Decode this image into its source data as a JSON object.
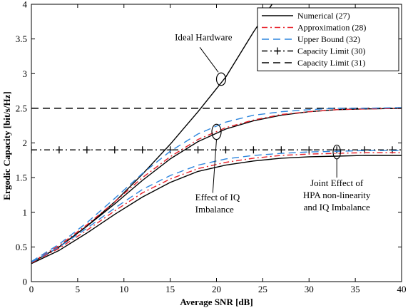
{
  "chart_data": {
    "type": "line",
    "xlabel": "Average SNR [dB]",
    "ylabel": "Ergodic Capacity [bit/s/Hz]",
    "xlim": [
      0,
      40
    ],
    "ylim": [
      0,
      4
    ],
    "xticks": [
      0,
      5,
      10,
      15,
      20,
      25,
      30,
      35,
      40
    ],
    "yticks": [
      0,
      0.5,
      1,
      1.5,
      2,
      2.5,
      3,
      3.5,
      4
    ],
    "xtick_labels": [
      "0",
      "5",
      "10",
      "15",
      "20",
      "25",
      "30",
      "35",
      "40"
    ],
    "ytick_labels": [
      "0",
      "0.5",
      "1",
      "1.5",
      "2",
      "2.5",
      "3",
      "3.5",
      "4"
    ],
    "grid": false,
    "legend_position": "top-right",
    "legend": [
      {
        "label": "Numerical (27)",
        "color": "#000000",
        "style": "solid",
        "marker": "none"
      },
      {
        "label": "Approximation (28)",
        "color": "#e8202a",
        "style": "dashdot",
        "marker": "none"
      },
      {
        "label": "Upper Bound (32)",
        "color": "#2e86de",
        "style": "dashed",
        "marker": "none"
      },
      {
        "label": "Capacity Limit (30)",
        "color": "#000000",
        "style": "dashdot",
        "marker": "plus"
      },
      {
        "label": "Capacity Limit (31)",
        "color": "#000000",
        "style": "dashed",
        "marker": "none"
      }
    ],
    "series": [
      {
        "group": "ideal",
        "color": "#000000",
        "style": "solid",
        "x": [
          0,
          3,
          6,
          9,
          12,
          15,
          18,
          21,
          24,
          26
        ],
        "y": [
          0.27,
          0.5,
          0.8,
          1.15,
          1.55,
          1.98,
          2.45,
          2.95,
          3.6,
          4.0
        ]
      },
      {
        "group": "iq",
        "color": "#000000",
        "style": "solid",
        "x": [
          0,
          3,
          6,
          9,
          12,
          15,
          18,
          21,
          24,
          27,
          30,
          33,
          36,
          40
        ],
        "y": [
          0.27,
          0.5,
          0.8,
          1.12,
          1.46,
          1.77,
          2.02,
          2.2,
          2.32,
          2.4,
          2.45,
          2.48,
          2.49,
          2.5
        ]
      },
      {
        "group": "iq",
        "color": "#e8202a",
        "style": "dashdot",
        "x": [
          0,
          3,
          6,
          9,
          12,
          15,
          18,
          21,
          24,
          27,
          30,
          33,
          36,
          40
        ],
        "y": [
          0.28,
          0.52,
          0.82,
          1.15,
          1.5,
          1.8,
          2.05,
          2.22,
          2.33,
          2.41,
          2.45,
          2.48,
          2.49,
          2.5
        ]
      },
      {
        "group": "iq",
        "color": "#2e86de",
        "style": "dashed",
        "x": [
          0,
          3,
          6,
          9,
          12,
          15,
          18,
          21,
          24,
          27,
          30,
          33,
          36,
          40
        ],
        "y": [
          0.29,
          0.54,
          0.85,
          1.2,
          1.56,
          1.88,
          2.13,
          2.3,
          2.4,
          2.45,
          2.48,
          2.5,
          2.5,
          2.51
        ]
      },
      {
        "group": "hpa",
        "color": "#000000",
        "style": "solid",
        "x": [
          0,
          3,
          6,
          9,
          12,
          15,
          18,
          21,
          24,
          27,
          30,
          33,
          36,
          40
        ],
        "y": [
          0.26,
          0.45,
          0.7,
          0.97,
          1.22,
          1.43,
          1.59,
          1.68,
          1.74,
          1.78,
          1.8,
          1.81,
          1.82,
          1.82
        ]
      },
      {
        "group": "hpa",
        "color": "#e8202a",
        "style": "dashdot",
        "x": [
          0,
          3,
          6,
          9,
          12,
          15,
          18,
          21,
          24,
          27,
          30,
          33,
          36,
          40
        ],
        "y": [
          0.27,
          0.48,
          0.74,
          1.02,
          1.28,
          1.48,
          1.63,
          1.72,
          1.78,
          1.82,
          1.84,
          1.85,
          1.86,
          1.86
        ]
      },
      {
        "group": "hpa",
        "color": "#2e86de",
        "style": "dashed",
        "x": [
          0,
          3,
          6,
          9,
          12,
          15,
          18,
          21,
          24,
          27,
          30,
          33,
          36,
          40
        ],
        "y": [
          0.28,
          0.5,
          0.77,
          1.06,
          1.33,
          1.53,
          1.68,
          1.77,
          1.82,
          1.85,
          1.87,
          1.88,
          1.89,
          1.89
        ]
      }
    ],
    "limit_lines": [
      {
        "y": 2.5,
        "color": "#000000",
        "style": "dashed",
        "marker": "none"
      },
      {
        "y": 1.9,
        "color": "#000000",
        "style": "dashdot",
        "marker": "plus",
        "marker_x": [
          0,
          3,
          6,
          9,
          12,
          15,
          18,
          21,
          24,
          27,
          30,
          33,
          36,
          39
        ]
      }
    ],
    "annotations": [
      {
        "lines": [
          "Ideal Hardware"
        ],
        "x": 18.6,
        "y": 3.48,
        "align": "middle"
      },
      {
        "lines": [
          "Effect of IQ",
          "Imbalance"
        ],
        "x": 17.7,
        "y": 1.17,
        "align": "start"
      },
      {
        "lines": [
          "Joint Effect of",
          "HPA non-linearity",
          "and IQ Imbalance"
        ],
        "x": 33,
        "y": 1.38,
        "align": "middle"
      }
    ],
    "ellipses": [
      {
        "x": 20.5,
        "y": 2.92,
        "rx": 0.5,
        "ry": 0.09
      },
      {
        "x": 20.0,
        "y": 2.16,
        "rx": 0.5,
        "ry": 0.11
      },
      {
        "x": 33.0,
        "y": 1.87,
        "rx": 0.4,
        "ry": 0.1
      }
    ],
    "leaders": [
      {
        "x1": 18.2,
        "y1": 3.38,
        "x2": 20.2,
        "y2": 3.02
      },
      {
        "x1": 19.6,
        "y1": 1.28,
        "x2": 20.0,
        "y2": 2.05
      },
      {
        "x1": 33.0,
        "y1": 1.5,
        "x2": 33.0,
        "y2": 1.77
      }
    ]
  }
}
